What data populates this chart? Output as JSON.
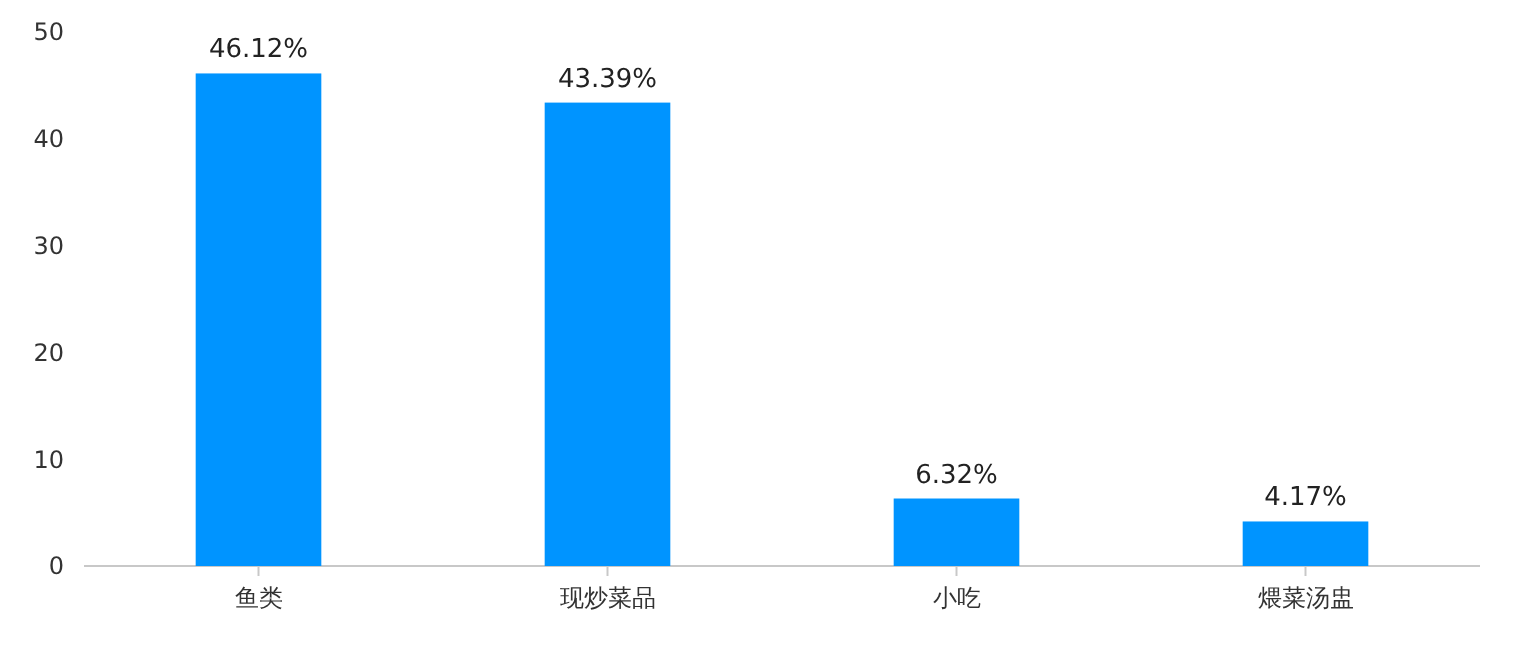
{
  "chart_data": {
    "type": "bar",
    "categories": [
      "鱼类",
      "现炒菜品",
      "小吃",
      "煨菜汤盅"
    ],
    "values": [
      46.12,
      43.39,
      6.32,
      4.17
    ],
    "value_labels": [
      "46.12%",
      "43.39%",
      "6.32%",
      "4.17%"
    ],
    "color": "#0094ff",
    "ylim": [
      0,
      50
    ],
    "yticks": [
      0,
      10,
      20,
      30,
      40,
      50
    ],
    "grid": false
  }
}
